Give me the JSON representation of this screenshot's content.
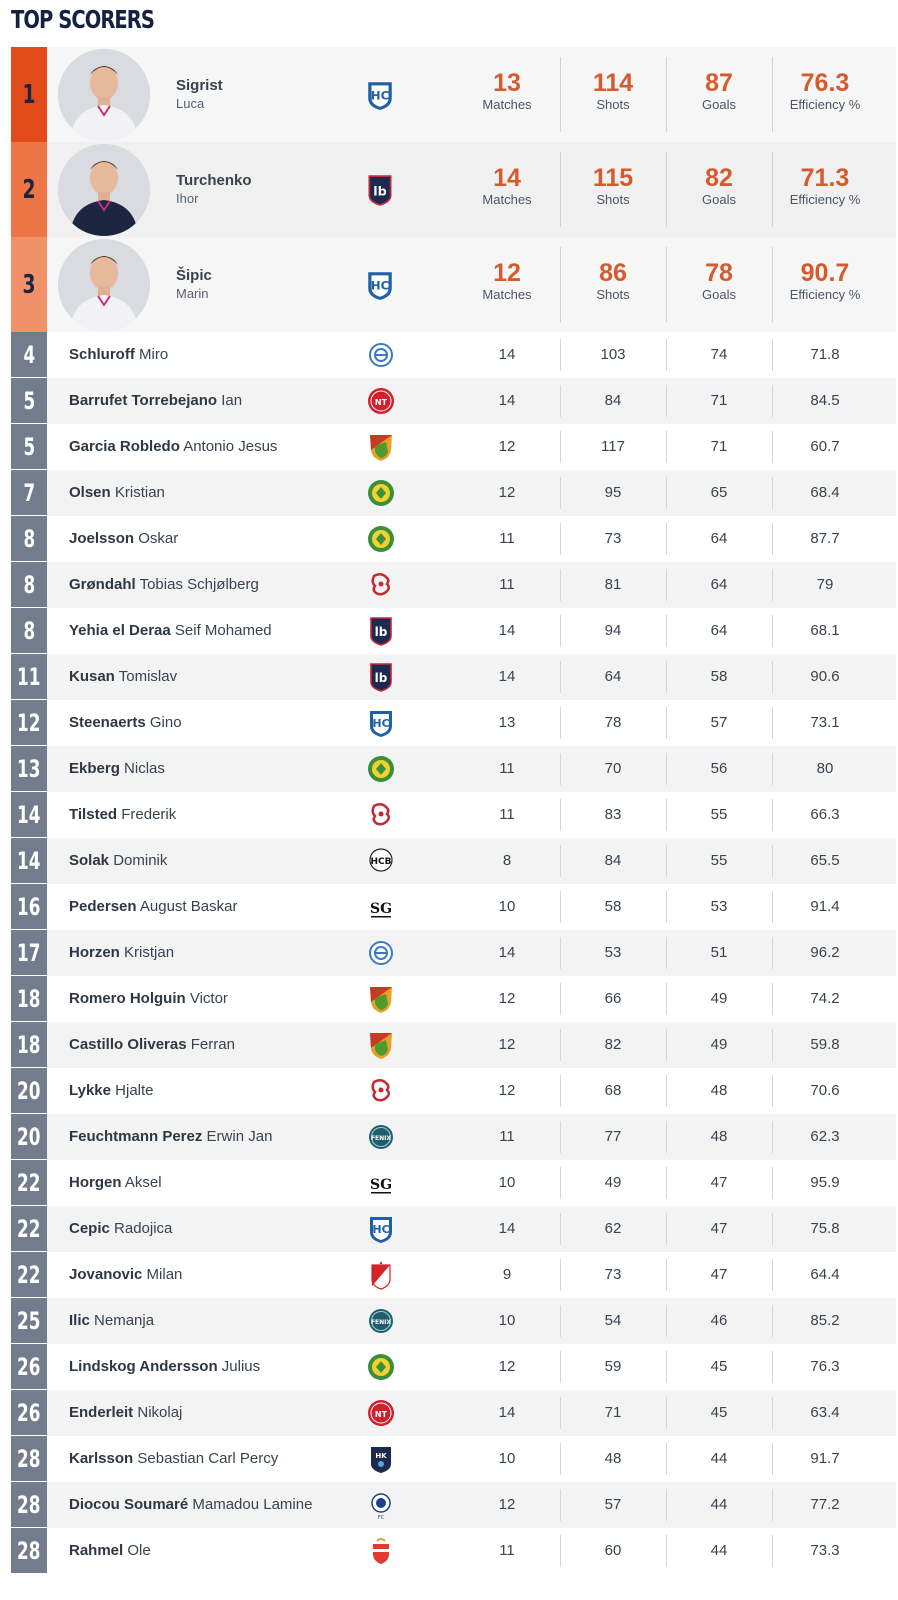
{
  "page": {
    "title": "TOP SCORERS"
  },
  "colors": {
    "rank1": "#e34a1a",
    "rank2": "#ee7545",
    "rank3": "#f1916a",
    "rank_other": "#727c8c",
    "accent_value": "#d55a2c",
    "title": "#14223f"
  },
  "labels": {
    "matches": "Matches",
    "shots": "Shots",
    "goals": "Goals",
    "efficiency": "Efficiency %"
  },
  "top3": [
    {
      "rank": "1",
      "last": "Sigrist",
      "first": "Luca",
      "team_logo": "blue-shield-logo",
      "matches": "13",
      "shots": "114",
      "goals": "87",
      "efficiency": "76.3"
    },
    {
      "rank": "2",
      "last": "Turchenko",
      "first": "Ihor",
      "team_logo": "navy-lb-logo",
      "matches": "14",
      "shots": "115",
      "goals": "82",
      "efficiency": "71.3"
    },
    {
      "rank": "3",
      "last": "Šipic",
      "first": "Marin",
      "team_logo": "blue-shield-logo",
      "matches": "12",
      "shots": "86",
      "goals": "78",
      "efficiency": "90.7"
    }
  ],
  "players": [
    {
      "rank": "4",
      "last": "Schluroff",
      "first": "Miro",
      "team_logo": "blue-round-logo",
      "matches": "14",
      "shots": "103",
      "goals": "74",
      "efficiency": "71.8"
    },
    {
      "rank": "5",
      "last": "Barrufet Torrebejano",
      "first": "Ian",
      "team_logo": "red-round-logo",
      "matches": "14",
      "shots": "84",
      "goals": "71",
      "efficiency": "84.5"
    },
    {
      "rank": "5",
      "last": "Garcia Robledo",
      "first": "Antonio Jesus",
      "team_logo": "green-orange-shield-logo",
      "matches": "12",
      "shots": "117",
      "goals": "71",
      "efficiency": "60.7"
    },
    {
      "rank": "7",
      "last": "Olsen",
      "first": "Kristian",
      "team_logo": "green-yellow-round-logo",
      "matches": "12",
      "shots": "95",
      "goals": "65",
      "efficiency": "68.4"
    },
    {
      "rank": "8",
      "last": "Joelsson",
      "first": "Oskar",
      "team_logo": "green-yellow-round-logo",
      "matches": "11",
      "shots": "73",
      "goals": "64",
      "efficiency": "87.7"
    },
    {
      "rank": "8",
      "last": "Grøndahl",
      "first": "Tobias Schjølberg",
      "team_logo": "red-lion-logo",
      "matches": "11",
      "shots": "81",
      "goals": "64",
      "efficiency": "79"
    },
    {
      "rank": "8",
      "last": "Yehia el Deraa",
      "first": "Seif Mohamed",
      "team_logo": "navy-lb-logo",
      "matches": "14",
      "shots": "94",
      "goals": "64",
      "efficiency": "68.1"
    },
    {
      "rank": "11",
      "last": "Kusan",
      "first": "Tomislav",
      "team_logo": "navy-lb-logo",
      "matches": "14",
      "shots": "64",
      "goals": "58",
      "efficiency": "90.6"
    },
    {
      "rank": "12",
      "last": "Steenaerts",
      "first": "Gino",
      "team_logo": "blue-shield-logo",
      "matches": "13",
      "shots": "78",
      "goals": "57",
      "efficiency": "73.1"
    },
    {
      "rank": "13",
      "last": "Ekberg",
      "first": "Niclas",
      "team_logo": "green-yellow-round-logo",
      "matches": "11",
      "shots": "70",
      "goals": "56",
      "efficiency": "80"
    },
    {
      "rank": "14",
      "last": "Tilsted",
      "first": "Frederik",
      "team_logo": "red-lion-logo",
      "matches": "11",
      "shots": "83",
      "goals": "55",
      "efficiency": "66.3"
    },
    {
      "rank": "14",
      "last": "Solak",
      "first": "Dominik",
      "team_logo": "hcb-text-logo",
      "matches": "8",
      "shots": "84",
      "goals": "55",
      "efficiency": "65.5"
    },
    {
      "rank": "16",
      "last": "Pedersen",
      "first": "August Baskar",
      "team_logo": "sg-text-logo",
      "matches": "10",
      "shots": "58",
      "goals": "53",
      "efficiency": "91.4"
    },
    {
      "rank": "17",
      "last": "Horzen",
      "first": "Kristjan",
      "team_logo": "blue-round-logo",
      "matches": "14",
      "shots": "53",
      "goals": "51",
      "efficiency": "96.2"
    },
    {
      "rank": "18",
      "last": "Romero Holguin",
      "first": "Victor",
      "team_logo": "green-orange-shield-logo",
      "matches": "12",
      "shots": "66",
      "goals": "49",
      "efficiency": "74.2"
    },
    {
      "rank": "18",
      "last": "Castillo Oliveras",
      "first": "Ferran",
      "team_logo": "green-orange-shield-logo",
      "matches": "12",
      "shots": "82",
      "goals": "49",
      "efficiency": "59.8"
    },
    {
      "rank": "20",
      "last": "Lykke",
      "first": "Hjalte",
      "team_logo": "red-lion-logo",
      "matches": "12",
      "shots": "68",
      "goals": "48",
      "efficiency": "70.6"
    },
    {
      "rank": "20",
      "last": "Feuchtmann Perez",
      "first": "Erwin Jan",
      "team_logo": "teal-fenix-logo",
      "matches": "11",
      "shots": "77",
      "goals": "48",
      "efficiency": "62.3"
    },
    {
      "rank": "22",
      "last": "Horgen",
      "first": "Aksel",
      "team_logo": "sg-text-logo",
      "matches": "10",
      "shots": "49",
      "goals": "47",
      "efficiency": "95.9"
    },
    {
      "rank": "22",
      "last": "Cepic",
      "first": "Radojica",
      "team_logo": "blue-shield-logo",
      "matches": "14",
      "shots": "62",
      "goals": "47",
      "efficiency": "75.8"
    },
    {
      "rank": "22",
      "last": "Jovanovic",
      "first": "Milan",
      "team_logo": "red-white-shield-logo",
      "matches": "9",
      "shots": "73",
      "goals": "47",
      "efficiency": "64.4"
    },
    {
      "rank": "25",
      "last": "Ilic",
      "first": "Nemanja",
      "team_logo": "teal-fenix-logo",
      "matches": "10",
      "shots": "54",
      "goals": "46",
      "efficiency": "85.2"
    },
    {
      "rank": "26",
      "last": "Lindskog Andersson",
      "first": "Julius",
      "team_logo": "green-yellow-round-logo",
      "matches": "12",
      "shots": "59",
      "goals": "45",
      "efficiency": "76.3"
    },
    {
      "rank": "26",
      "last": "Enderleit",
      "first": "Nikolaj",
      "team_logo": "red-round-logo",
      "matches": "14",
      "shots": "71",
      "goals": "45",
      "efficiency": "63.4"
    },
    {
      "rank": "28",
      "last": "Karlsson",
      "first": "Sebastian Carl Percy",
      "team_logo": "navy-hk-logo",
      "matches": "10",
      "shots": "48",
      "goals": "44",
      "efficiency": "91.7"
    },
    {
      "rank": "28",
      "last": "Diocou Soumaré",
      "first": "Mamadou Lamine",
      "team_logo": "porto-logo",
      "matches": "12",
      "shots": "57",
      "goals": "44",
      "efficiency": "77.2"
    },
    {
      "rank": "28",
      "last": "Rahmel",
      "first": "Ole",
      "team_logo": "benfica-logo",
      "matches": "11",
      "shots": "60",
      "goals": "44",
      "efficiency": "73.3"
    }
  ]
}
